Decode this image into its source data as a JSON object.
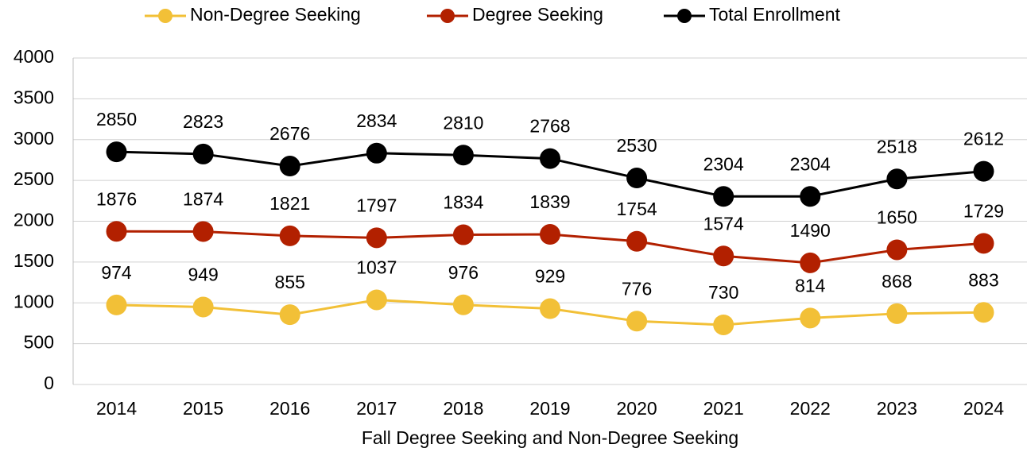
{
  "chart_data": {
    "type": "line",
    "x_label": "Fall Degree Seeking and Non-Degree Seeking",
    "categories": [
      "2014",
      "2015",
      "2016",
      "2017",
      "2018",
      "2019",
      "2020",
      "2021",
      "2022",
      "2023",
      "2024"
    ],
    "series": [
      {
        "name": "Non-Degree Seeking",
        "color": "#f2c037",
        "values": [
          974,
          949,
          855,
          1037,
          976,
          929,
          776,
          730,
          814,
          868,
          883
        ]
      },
      {
        "name": "Degree Seeking",
        "color": "#b22000",
        "values": [
          1876,
          1874,
          1821,
          1797,
          1834,
          1839,
          1754,
          1574,
          1490,
          1650,
          1729
        ]
      },
      {
        "name": "Total Enrollment",
        "color": "#000000",
        "values": [
          2850,
          2823,
          2676,
          2834,
          2810,
          2768,
          2530,
          2304,
          2304,
          2518,
          2612
        ]
      }
    ],
    "ylim": [
      0,
      4000
    ],
    "yticks": [
      0,
      500,
      1000,
      1500,
      2000,
      2500,
      3000,
      3500,
      4000
    ],
    "grid": true,
    "legend": "top"
  }
}
